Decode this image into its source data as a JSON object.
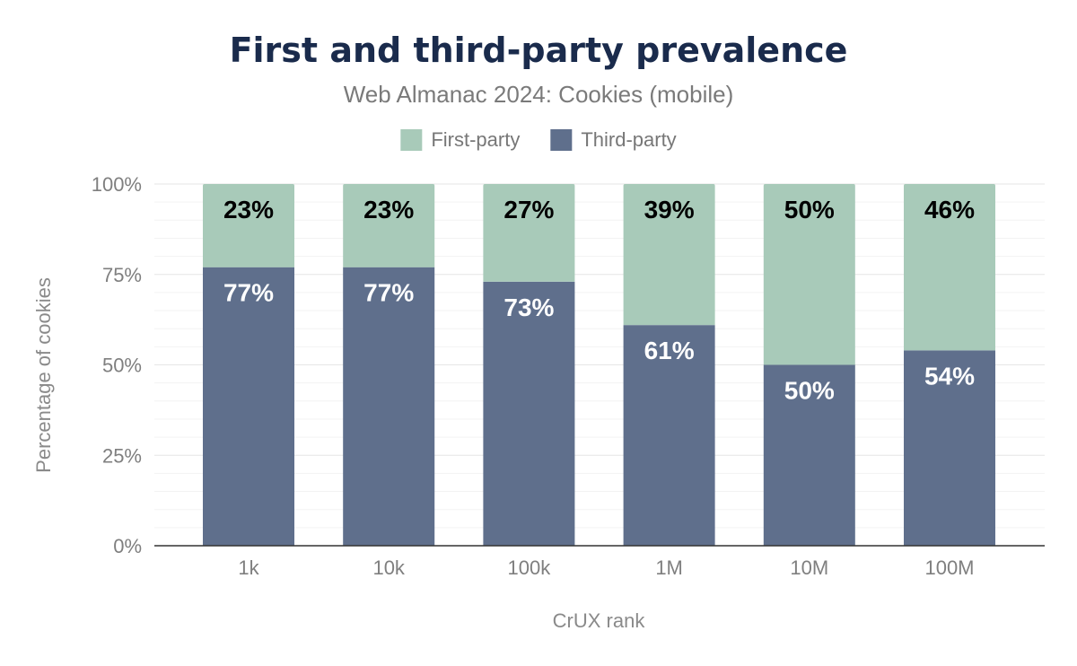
{
  "chart_data": {
    "type": "bar",
    "stacked": true,
    "percent": true,
    "title": "First and third-party prevalence",
    "subtitle": "Web Almanac 2024: Cookies (mobile)",
    "xlabel": "CrUX rank",
    "ylabel": "Percentage of cookies",
    "categories": [
      "1k",
      "10k",
      "100k",
      "1M",
      "10M",
      "100M"
    ],
    "series": [
      {
        "name": "Third-party",
        "values": [
          77,
          77,
          73,
          61,
          50,
          54
        ],
        "labels": [
          "77%",
          "77%",
          "73%",
          "61%",
          "50%",
          "54%"
        ],
        "color": "#5f6f8c",
        "label_color": "#ffffff"
      },
      {
        "name": "First-party",
        "values": [
          23,
          23,
          27,
          39,
          50,
          46
        ],
        "labels": [
          "23%",
          "23%",
          "27%",
          "39%",
          "50%",
          "46%"
        ],
        "color": "#a8cab9",
        "label_color": "#000000"
      }
    ],
    "legend_order": [
      "First-party",
      "Third-party"
    ],
    "legend_position": "top-center",
    "ylim": [
      0,
      100
    ],
    "yticks": [
      0,
      25,
      50,
      75,
      100
    ],
    "ytick_labels": [
      "0%",
      "25%",
      "50%",
      "75%",
      "100%"
    ],
    "grid": true
  }
}
